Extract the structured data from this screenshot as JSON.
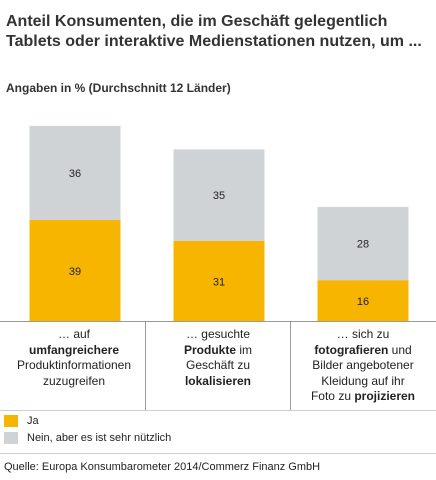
{
  "title": "Anteil Konsumenten, die im Geschäft gelegentlich Tablets oder interaktive Medienstationen nutzen, um ...",
  "subtitle": "Angaben in % (Durchschnitt 12 Länder)",
  "colors": {
    "ja": "#f7b500",
    "nein": "#cfd3d6",
    "divider": "#9a9a9a"
  },
  "categories": [
    {
      "parts": [
        {
          "text": "… auf",
          "bold": false,
          "br": true
        },
        {
          "text": "umfangreichere",
          "bold": true,
          "br": true
        },
        {
          "text": "Produktinformationen",
          "bold": false,
          "br": true
        },
        {
          "text": "zuzugreifen",
          "bold": false,
          "br": false
        }
      ]
    },
    {
      "parts": [
        {
          "text": "… gesuchte",
          "bold": false,
          "br": true
        },
        {
          "text": "Produkte",
          "bold": true,
          "br": false
        },
        {
          "text": " im",
          "bold": false,
          "br": true
        },
        {
          "text": "Geschäft zu",
          "bold": false,
          "br": true
        },
        {
          "text": "lokalisieren",
          "bold": true,
          "br": false
        }
      ]
    },
    {
      "parts": [
        {
          "text": "… sich zu",
          "bold": false,
          "br": true
        },
        {
          "text": "fotografieren",
          "bold": true,
          "br": false
        },
        {
          "text": " und",
          "bold": false,
          "br": true
        },
        {
          "text": "Bilder angebotener",
          "bold": false,
          "br": true
        },
        {
          "text": "Kleidung auf ihr",
          "bold": false,
          "br": true
        },
        {
          "text": "Foto zu ",
          "bold": false,
          "br": false
        },
        {
          "text": "projizieren",
          "bold": true,
          "br": false
        }
      ]
    }
  ],
  "legend": [
    {
      "label": "Ja",
      "color": "#f7b500"
    },
    {
      "label": "Nein, aber es ist sehr nützlich",
      "color": "#cfd3d6"
    }
  ],
  "source": "Quelle: Europa Konsumbarometer 2014/Commerz Finanz GmbH",
  "chart_data": {
    "type": "bar",
    "stacked": true,
    "title": "Anteil Konsumenten, die im Geschäft gelegentlich Tablets oder interaktive Medienstationen nutzen, um ...",
    "subtitle": "Angaben in % (Durchschnitt 12 Länder)",
    "categories": [
      "… auf umfangreichere Produktinformationen zuzugreifen",
      "… gesuchte Produkte im Geschäft zu lokalisieren",
      "… sich zu fotografieren und Bilder angebotener Kleidung auf ihr Foto zu projizieren"
    ],
    "series": [
      {
        "name": "Ja",
        "values": [
          39,
          31,
          16
        ],
        "color": "#f7b500"
      },
      {
        "name": "Nein, aber es ist sehr nützlich",
        "values": [
          36,
          35,
          28
        ],
        "color": "#cfd3d6"
      }
    ],
    "ylim": [
      0,
      77
    ],
    "grid": false,
    "legend_position": "bottom-left",
    "data_labels": true,
    "source": "Quelle: Europa Konsumbarometer 2014/Commerz Finanz GmbH"
  }
}
